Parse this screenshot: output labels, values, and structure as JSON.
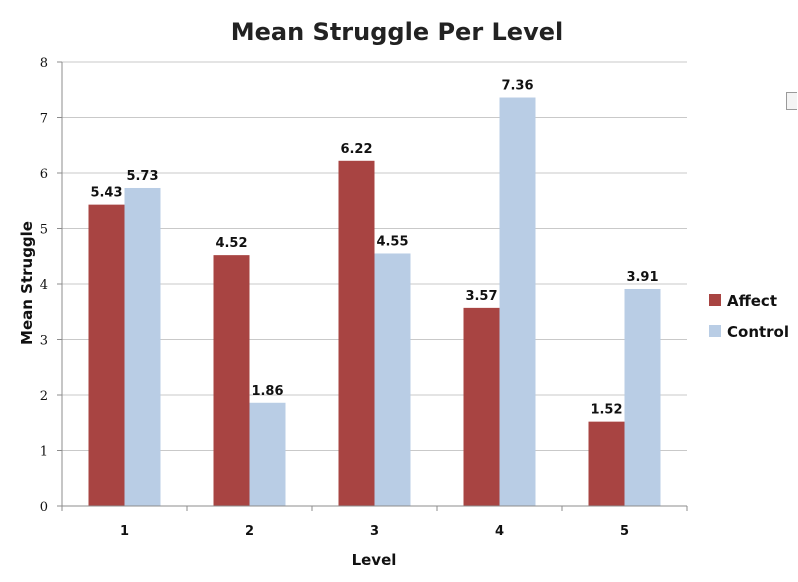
{
  "chart_data": {
    "type": "bar",
    "title": "Mean Struggle Per Level",
    "xlabel": "Level",
    "ylabel": "Mean Struggle",
    "categories": [
      "1",
      "2",
      "3",
      "4",
      "5"
    ],
    "ylim": [
      0,
      8
    ],
    "yticks": [
      "0",
      "1",
      "2",
      "3",
      "4",
      "5",
      "6",
      "7",
      "8"
    ],
    "grid": true,
    "legend_position": "right",
    "series": [
      {
        "name": "Affect",
        "color": "#a84442",
        "values": [
          5.43,
          4.52,
          6.22,
          3.57,
          1.52
        ],
        "labels": [
          "5.43",
          "4.52",
          "6.22",
          "3.57",
          "1.52"
        ]
      },
      {
        "name": "Control",
        "color": "#b9cde5",
        "values": [
          5.73,
          1.86,
          4.55,
          7.36,
          3.91
        ],
        "labels": [
          "5.73",
          "1.86",
          "4.55",
          "7.36",
          "3.91"
        ]
      }
    ]
  }
}
